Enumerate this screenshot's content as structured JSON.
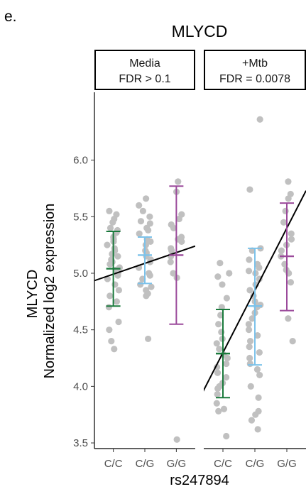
{
  "figure": {
    "panel_letter": "e.",
    "title": "MLYCD"
  },
  "chart_data": {
    "type": "scatter",
    "title": "MLYCD",
    "ylabel_line1": "MLYCD",
    "ylabel_line2": "Normalized log2 expression",
    "xlabel": "rs247894",
    "yticks": [
      "3.5",
      "4.0",
      "4.5",
      "5.0",
      "5.5",
      "6.0"
    ],
    "ylim": [
      3.45,
      6.6
    ],
    "categories": [
      "C/C",
      "C/G",
      "G/G"
    ],
    "colors": {
      "C/C": "#1a7a3c",
      "C/G": "#7cc2ea",
      "G/G": "#9b4a9b",
      "points": "#c0c0c0",
      "line": "#000000"
    },
    "panels": [
      {
        "strip_line1": "Media",
        "strip_line2": "FDR > 0.1",
        "points": {
          "C/C": [
            5.55,
            5.52,
            5.48,
            5.45,
            5.4,
            5.38,
            5.36,
            5.32,
            5.3,
            5.28,
            5.25,
            5.22,
            5.2,
            5.17,
            5.15,
            5.12,
            5.1,
            5.08,
            5.05,
            5.03,
            5.0,
            4.98,
            4.95,
            4.9,
            4.85,
            4.8,
            4.75,
            4.7,
            4.57,
            4.5,
            4.4,
            4.33
          ],
          "C/G": [
            5.66,
            5.6,
            5.55,
            5.5,
            5.46,
            5.44,
            5.4,
            5.38,
            5.35,
            5.3,
            5.28,
            5.25,
            5.2,
            5.18,
            5.15,
            5.12,
            5.1,
            5.05,
            5.0,
            4.98,
            4.95,
            4.9,
            4.88,
            4.85,
            4.82,
            4.8,
            4.42
          ],
          "G/G": [
            5.81,
            5.72,
            5.52,
            5.48,
            5.43,
            5.4,
            5.32,
            5.3,
            5.28,
            5.22,
            5.2,
            5.15,
            5.1,
            5.0,
            4.96,
            3.53
          ]
        },
        "summary": {
          "C/C": {
            "mean": 5.04,
            "low": 4.71,
            "high": 5.37
          },
          "C/G": {
            "mean": 5.16,
            "low": 4.91,
            "high": 5.32
          },
          "G/G": {
            "mean": 5.16,
            "low": 4.55,
            "high": 5.77
          }
        },
        "regression": {
          "x": [
            0.35,
            3.6
          ],
          "y": [
            4.93,
            5.24
          ]
        }
      },
      {
        "strip_line1": "+Mtb",
        "strip_line2": "FDR = 0.0078",
        "points": {
          "C/C": [
            5.09,
            5.0,
            4.97,
            4.9,
            4.78,
            4.7,
            4.63,
            4.55,
            4.48,
            4.42,
            4.38,
            4.33,
            4.28,
            4.25,
            4.2,
            4.17,
            4.12,
            4.08,
            4.03,
            4.0,
            3.98,
            3.93,
            3.85,
            3.8,
            3.78,
            3.56
          ],
          "C/G": [
            6.36,
            5.74,
            5.22,
            5.2,
            5.12,
            5.08,
            5.05,
            5.02,
            5.0,
            4.95,
            4.9,
            4.85,
            4.8,
            4.75,
            4.72,
            4.7,
            4.65,
            4.6,
            4.55,
            4.5,
            4.45,
            4.4,
            4.35,
            4.3,
            4.25,
            4.2,
            4.15,
            4.1,
            4.0,
            3.9,
            3.78,
            3.75,
            3.7,
            3.62
          ],
          "G/G": [
            5.81,
            5.7,
            5.66,
            5.55,
            5.45,
            5.35,
            5.3,
            5.25,
            5.2,
            5.15,
            5.08,
            5.03,
            5.0,
            4.92,
            4.6,
            4.4
          ]
        },
        "summary": {
          "C/C": {
            "mean": 4.29,
            "low": 3.9,
            "high": 4.68
          },
          "C/G": {
            "mean": 4.71,
            "low": 4.19,
            "high": 5.22
          },
          "G/G": {
            "mean": 5.15,
            "low": 4.67,
            "high": 5.62
          }
        },
        "regression": {
          "x": [
            0.35,
            3.6
          ],
          "y": [
            3.94,
            5.73
          ]
        }
      }
    ]
  }
}
